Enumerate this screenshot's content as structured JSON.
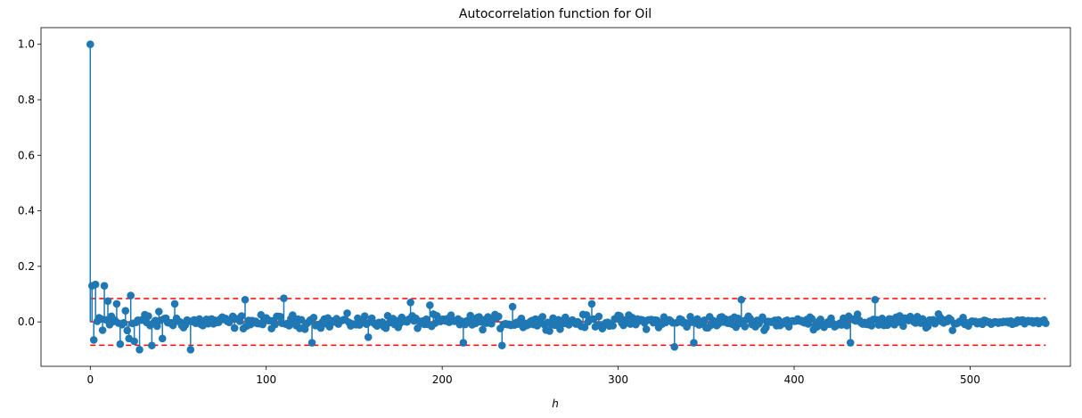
{
  "chart_data": {
    "type": "scatter",
    "title": "Autocorrelation function for Oil",
    "xlabel": "h",
    "ylabel": "",
    "xlim": [
      -28,
      557
    ],
    "ylim": [
      -0.16,
      1.06
    ],
    "xticks": [
      0,
      100,
      200,
      300,
      400,
      500
    ],
    "yticks": [
      0.0,
      0.2,
      0.4,
      0.6,
      0.8,
      1.0
    ],
    "xtick_labels": [
      "0",
      "100",
      "200",
      "300",
      "400",
      "500"
    ],
    "ytick_labels": [
      "0.0",
      "0.2",
      "0.4",
      "0.6",
      "0.8",
      "1.0"
    ],
    "n_lags": 544,
    "confidence_band": [
      -0.084,
      0.084
    ],
    "stem_color": "#1f77b4",
    "marker_color": "#1f77b4",
    "baseline_color": "#d62728",
    "band_color": "#ff0000",
    "legend": "none",
    "grid": false,
    "key_values": [
      {
        "h": 0,
        "acf": 1.0
      },
      {
        "h": 1,
        "acf": 0.13
      },
      {
        "h": 2,
        "acf": -0.065
      },
      {
        "h": 3,
        "acf": 0.135
      },
      {
        "h": 5,
        "acf": 0.015
      },
      {
        "h": 7,
        "acf": -0.03
      },
      {
        "h": 8,
        "acf": 0.13
      },
      {
        "h": 10,
        "acf": 0.075
      },
      {
        "h": 12,
        "acf": 0.02
      },
      {
        "h": 15,
        "acf": 0.065
      },
      {
        "h": 17,
        "acf": -0.08
      },
      {
        "h": 20,
        "acf": 0.04
      },
      {
        "h": 22,
        "acf": -0.06
      },
      {
        "h": 23,
        "acf": 0.095
      },
      {
        "h": 25,
        "acf": -0.07
      },
      {
        "h": 28,
        "acf": -0.1
      },
      {
        "h": 35,
        "acf": -0.085
      },
      {
        "h": 41,
        "acf": -0.06
      },
      {
        "h": 48,
        "acf": 0.065
      },
      {
        "h": 57,
        "acf": -0.1
      },
      {
        "h": 88,
        "acf": 0.08
      },
      {
        "h": 110,
        "acf": 0.085
      },
      {
        "h": 126,
        "acf": -0.075
      },
      {
        "h": 158,
        "acf": -0.055
      },
      {
        "h": 182,
        "acf": 0.07
      },
      {
        "h": 193,
        "acf": 0.06
      },
      {
        "h": 212,
        "acf": -0.075
      },
      {
        "h": 234,
        "acf": -0.085
      },
      {
        "h": 240,
        "acf": 0.055
      },
      {
        "h": 285,
        "acf": 0.065
      },
      {
        "h": 332,
        "acf": -0.09
      },
      {
        "h": 343,
        "acf": -0.075
      },
      {
        "h": 370,
        "acf": 0.08
      },
      {
        "h": 432,
        "acf": -0.075
      },
      {
        "h": 446,
        "acf": 0.08
      }
    ]
  }
}
